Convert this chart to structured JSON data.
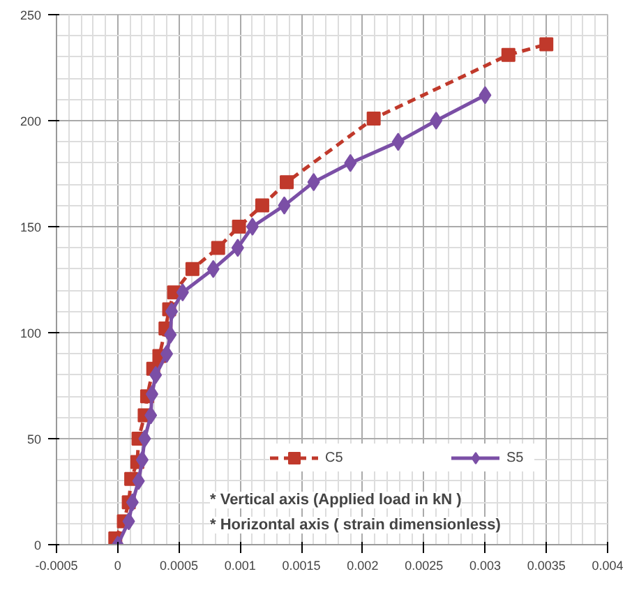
{
  "chart_data": {
    "type": "line",
    "xlim": [
      -0.0005,
      0.004
    ],
    "xticks": [
      {
        "value": -0.0005,
        "label": "-0.0005"
      },
      0,
      0.0005,
      0.001,
      0.0015,
      0.002,
      0.0025,
      0.003,
      0.0035,
      0.004
    ],
    "ylim": [
      0,
      250
    ],
    "yticks": [
      0,
      50,
      100,
      150,
      200,
      250
    ],
    "grid": true,
    "legend": "bottom right",
    "annotations": [
      "* Vertical axis (Applied load in kN )",
      "* Horizontal axis ( strain dimensionless)"
    ],
    "series": [
      {
        "name": "C5",
        "color": "#c0392b",
        "marker": "square",
        "line_style": "dashed",
        "x": [
          -2e-05,
          5e-05,
          9e-05,
          0.00011,
          0.00016,
          0.00017,
          0.00022,
          0.00024,
          0.00029,
          0.00034,
          0.00039,
          0.00042,
          0.00046,
          0.00061,
          0.00082,
          0.00099,
          0.00118,
          0.00138,
          0.00209,
          0.00319,
          0.0035
        ],
        "values": [
          3,
          11,
          20,
          31,
          39,
          50,
          61,
          70,
          83,
          89,
          102,
          111,
          119,
          130,
          140,
          150,
          160,
          171,
          201,
          231,
          236
        ]
      },
      {
        "name": "S5",
        "color": "#7b4fa6",
        "marker": "diamond",
        "line_style": "solid",
        "x": [
          0,
          9e-05,
          0.00012,
          0.00017,
          0.0002,
          0.00022,
          0.00027,
          0.00028,
          0.00031,
          0.0004,
          0.00043,
          0.00044,
          0.00053,
          0.00078,
          0.00098,
          0.0011,
          0.00136,
          0.0016,
          0.0019,
          0.00229,
          0.0026,
          0.003
        ],
        "values": [
          0,
          11,
          20,
          30,
          40,
          50,
          61,
          71,
          80,
          90,
          99,
          110,
          119,
          130,
          140,
          150,
          160,
          171,
          180,
          190,
          200,
          212
        ]
      }
    ]
  }
}
